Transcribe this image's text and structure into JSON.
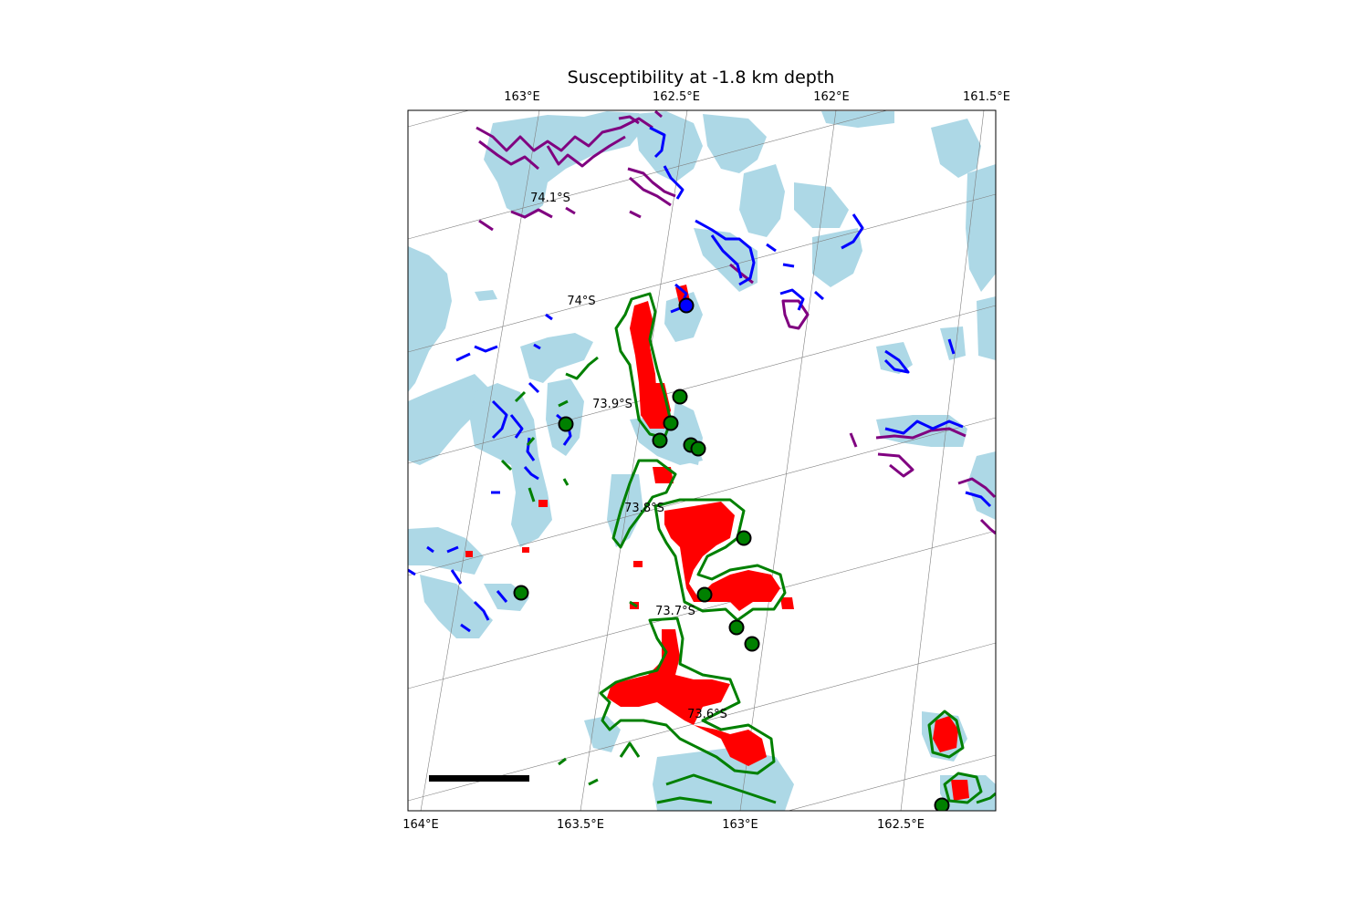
{
  "title": "Susceptibility at -1.8 km depth",
  "top_lon_labels": [
    "163°E",
    "162.5°E",
    "162°E",
    "161.5°E"
  ],
  "bottom_lon_labels": [
    "164°E",
    "163.5°E",
    "163°E",
    "162.5°E"
  ],
  "lat_labels": [
    "74.1°S",
    "74°S",
    "73.9°S",
    "73.8°S",
    "73.7°S",
    "73.6°S"
  ],
  "colors": {
    "ice": "#add8e6",
    "purple_contour": "#800080",
    "blue_contour": "#0000ff",
    "green_contour": "#008000",
    "high_susceptibility": "#ff0000",
    "station_green": "#008000",
    "station_blue": "#0000ff"
  },
  "layers": [
    "rock-outcrop",
    "purple-contours",
    "blue-contours",
    "green-contours",
    "high-susceptibility",
    "stations",
    "scale-bar"
  ],
  "stations": [
    {
      "color": "blue"
    },
    {
      "color": "green"
    },
    {
      "color": "green"
    },
    {
      "color": "green"
    },
    {
      "color": "green"
    },
    {
      "color": "green"
    },
    {
      "color": "green"
    },
    {
      "color": "green"
    },
    {
      "color": "green"
    },
    {
      "color": "green"
    },
    {
      "color": "green"
    },
    {
      "color": "green"
    },
    {
      "color": "green"
    }
  ]
}
